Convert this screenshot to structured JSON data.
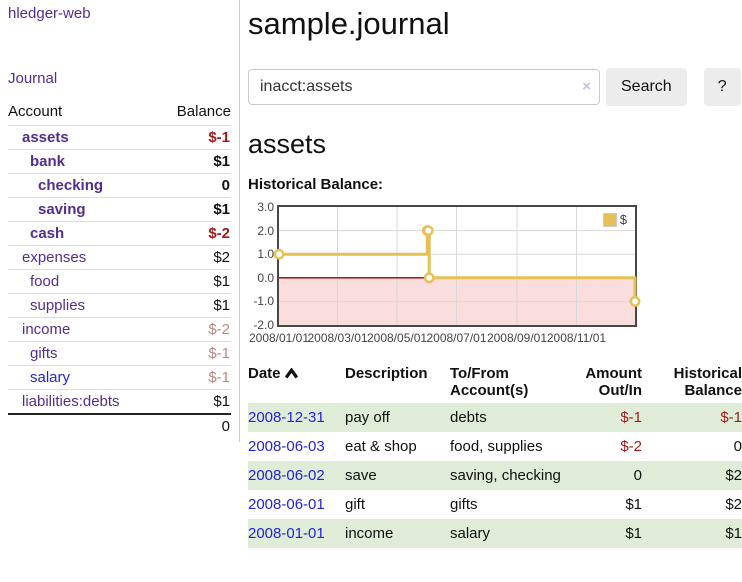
{
  "sidebar": {
    "app_title": "hledger-web",
    "journal_link": "Journal",
    "accounts_table": {
      "account_header": "Account",
      "balance_header": "Balance",
      "rows": [
        {
          "account": "assets",
          "balance": "$-1"
        },
        {
          "account": "bank",
          "balance": "$1"
        },
        {
          "account": "checking",
          "balance": "0"
        },
        {
          "account": "saving",
          "balance": "$1"
        },
        {
          "account": "cash",
          "balance": "$-2"
        },
        {
          "account": "expenses",
          "balance": "$2"
        },
        {
          "account": "food",
          "balance": "$1"
        },
        {
          "account": "supplies",
          "balance": "$1"
        },
        {
          "account": "income",
          "balance": "$-2"
        },
        {
          "account": "gifts",
          "balance": "$-1"
        },
        {
          "account": "salary",
          "balance": "$-1"
        },
        {
          "account": "liabilities:debts",
          "balance": "$1"
        }
      ],
      "total": "0"
    }
  },
  "main": {
    "title": "sample.journal",
    "search": {
      "value": "inacct:assets",
      "clear_icon": "×",
      "button_label": "Search",
      "help_label": "?"
    },
    "account_heading": "assets",
    "chart_title": "Historical Balance:"
  },
  "chart_data": {
    "type": "line",
    "title": "Historical Balance:",
    "step": true,
    "xlim": [
      "2008-01-01",
      "2008-12-31"
    ],
    "ylim": [
      -2,
      3
    ],
    "x_ticks": [
      "2008/01/01",
      "2008/03/01",
      "2008/05/01",
      "2008/07/01",
      "2008/09/01",
      "2008/11/01"
    ],
    "y_ticks": [
      "3.0",
      "2.0",
      "1.0",
      "0.0",
      "-1.0",
      "-2.0"
    ],
    "grid": true,
    "legend_position": "top-right",
    "series": [
      {
        "name": "$",
        "color": "#e5c052",
        "points": [
          [
            "2008-01-01",
            1
          ],
          [
            "2008-06-01",
            2
          ],
          [
            "2008-06-02",
            2
          ],
          [
            "2008-06-03",
            0
          ],
          [
            "2008-12-31",
            -1
          ]
        ]
      }
    ],
    "negative_region_color": "#fadddd",
    "zero_line_color": "#a00000",
    "grid_color": "#d9d9d9"
  },
  "register": {
    "headers": {
      "date": "Date",
      "description": "Description",
      "accounts": "To/From Account(s)",
      "amount": "Amount Out/In",
      "balance": "Historical Balance"
    },
    "rows": [
      {
        "date": "2008-12-31",
        "description": "pay off",
        "accounts": "debts",
        "amount": "$-1",
        "balance": "$-1"
      },
      {
        "date": "2008-06-03",
        "description": "eat & shop",
        "accounts": "food, supplies",
        "amount": "$-2",
        "balance": "0"
      },
      {
        "date": "2008-06-02",
        "description": "save",
        "accounts": "saving, checking",
        "amount": "0",
        "balance": "$2"
      },
      {
        "date": "2008-06-01",
        "description": "gift",
        "accounts": "gifts",
        "amount": "$1",
        "balance": "$2"
      },
      {
        "date": "2008-01-01",
        "description": "income",
        "accounts": "salary",
        "amount": "$1",
        "balance": "$1"
      }
    ]
  }
}
